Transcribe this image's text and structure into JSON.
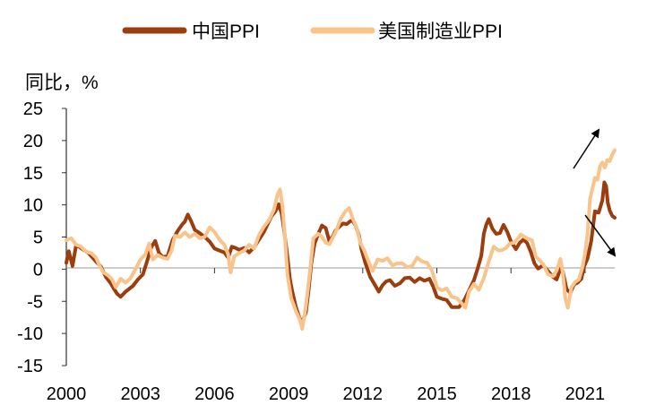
{
  "chart_data": {
    "type": "line",
    "ylabel": "同比，%",
    "ylim": [
      -15,
      25
    ],
    "yticks": [
      "25",
      "20",
      "15",
      "10",
      "5",
      "0",
      "-5",
      "-10",
      "-15"
    ],
    "xlim": [
      2000,
      2022.2
    ],
    "xticks": [
      "2000",
      "2003",
      "2006",
      "2009",
      "2012",
      "2015",
      "2018",
      "2021"
    ],
    "legend_position": "top",
    "grid": false,
    "annotations": [
      "arrow-up-right",
      "arrow-down-right"
    ],
    "series": [
      {
        "name": "中国PPI",
        "color": "#9B3D0C",
        "points": [
          [
            2000.0,
            1.0
          ],
          [
            2000.1,
            2.8
          ],
          [
            2000.25,
            0.5
          ],
          [
            2000.4,
            3.8
          ],
          [
            2000.7,
            3.0
          ],
          [
            2000.9,
            2.5
          ],
          [
            2001.2,
            1.2
          ],
          [
            2001.4,
            0.4
          ],
          [
            2001.6,
            -1.2
          ],
          [
            2001.8,
            -2.2
          ],
          [
            2001.95,
            -3.2
          ],
          [
            2002.05,
            -3.8
          ],
          [
            2002.2,
            -4.3
          ],
          [
            2002.4,
            -3.5
          ],
          [
            2002.7,
            -2.6
          ],
          [
            2002.9,
            -1.6
          ],
          [
            2003.1,
            -0.8
          ],
          [
            2003.25,
            1.0
          ],
          [
            2003.45,
            3.5
          ],
          [
            2003.6,
            4.4
          ],
          [
            2003.75,
            2.5
          ],
          [
            2003.9,
            1.9
          ],
          [
            2004.1,
            2.0
          ],
          [
            2004.3,
            4.5
          ],
          [
            2004.5,
            5.9
          ],
          [
            2004.7,
            7.0
          ],
          [
            2004.8,
            7.4
          ],
          [
            2004.92,
            8.5
          ],
          [
            2005.05,
            7.5
          ],
          [
            2005.2,
            6.1
          ],
          [
            2005.4,
            5.6
          ],
          [
            2005.6,
            5.0
          ],
          [
            2005.8,
            4.3
          ],
          [
            2006.0,
            3.2
          ],
          [
            2006.2,
            2.9
          ],
          [
            2006.4,
            2.6
          ],
          [
            2006.55,
            1.8
          ],
          [
            2006.7,
            3.5
          ],
          [
            2006.85,
            3.3
          ],
          [
            2007.0,
            3.0
          ],
          [
            2007.2,
            3.3
          ],
          [
            2007.4,
            2.6
          ],
          [
            2007.6,
            3.4
          ],
          [
            2007.8,
            4.6
          ],
          [
            2008.0,
            5.8
          ],
          [
            2008.15,
            7.0
          ],
          [
            2008.3,
            8.2
          ],
          [
            2008.45,
            8.9
          ],
          [
            2008.6,
            10.1
          ],
          [
            2008.72,
            8.6
          ],
          [
            2008.82,
            6.0
          ],
          [
            2008.95,
            2.0
          ],
          [
            2009.05,
            -1.5
          ],
          [
            2009.15,
            -3.5
          ],
          [
            2009.3,
            -6.0
          ],
          [
            2009.45,
            -7.7
          ],
          [
            2009.55,
            -8.2
          ],
          [
            2009.7,
            -6.7
          ],
          [
            2009.8,
            -3.5
          ],
          [
            2009.92,
            1.0
          ],
          [
            2010.05,
            4.0
          ],
          [
            2010.2,
            5.5
          ],
          [
            2010.35,
            6.8
          ],
          [
            2010.5,
            6.4
          ],
          [
            2010.65,
            4.3
          ],
          [
            2010.8,
            5.2
          ],
          [
            2010.9,
            6.0
          ],
          [
            2011.05,
            6.6
          ],
          [
            2011.2,
            7.1
          ],
          [
            2011.35,
            7.0
          ],
          [
            2011.5,
            7.5
          ],
          [
            2011.6,
            7.5
          ],
          [
            2011.72,
            6.7
          ],
          [
            2011.85,
            5.2
          ],
          [
            2011.95,
            3.1
          ],
          [
            2012.1,
            1.0
          ],
          [
            2012.3,
            -1.2
          ],
          [
            2012.5,
            -2.5
          ],
          [
            2012.65,
            -3.5
          ],
          [
            2012.8,
            -2.5
          ],
          [
            2012.95,
            -1.9
          ],
          [
            2013.1,
            -1.7
          ],
          [
            2013.3,
            -2.6
          ],
          [
            2013.5,
            -2.2
          ],
          [
            2013.7,
            -1.4
          ],
          [
            2013.9,
            -1.3
          ],
          [
            2014.1,
            -2.0
          ],
          [
            2014.3,
            -1.4
          ],
          [
            2014.5,
            -1.8
          ],
          [
            2014.7,
            -1.5
          ],
          [
            2014.85,
            -2.7
          ],
          [
            2015.0,
            -4.3
          ],
          [
            2015.2,
            -4.6
          ],
          [
            2015.4,
            -4.8
          ],
          [
            2015.6,
            -5.9
          ],
          [
            2015.75,
            -5.9
          ],
          [
            2015.9,
            -5.9
          ],
          [
            2016.1,
            -4.9
          ],
          [
            2016.3,
            -3.3
          ],
          [
            2016.5,
            -1.7
          ],
          [
            2016.65,
            0.1
          ],
          [
            2016.8,
            2.1
          ],
          [
            2016.9,
            5.5
          ],
          [
            2017.0,
            6.9
          ],
          [
            2017.1,
            7.8
          ],
          [
            2017.25,
            6.3
          ],
          [
            2017.4,
            5.5
          ],
          [
            2017.55,
            5.6
          ],
          [
            2017.7,
            6.9
          ],
          [
            2017.85,
            5.8
          ],
          [
            2018.0,
            4.3
          ],
          [
            2018.2,
            3.1
          ],
          [
            2018.35,
            4.1
          ],
          [
            2018.5,
            4.6
          ],
          [
            2018.65,
            4.1
          ],
          [
            2018.8,
            2.7
          ],
          [
            2018.95,
            0.9
          ],
          [
            2019.1,
            0.1
          ],
          [
            2019.3,
            0.6
          ],
          [
            2019.5,
            -0.3
          ],
          [
            2019.7,
            -1.2
          ],
          [
            2019.85,
            -1.6
          ],
          [
            2020.0,
            0.1
          ],
          [
            2020.1,
            -0.4
          ],
          [
            2020.25,
            -3.1
          ],
          [
            2020.4,
            -3.7
          ],
          [
            2020.55,
            -2.4
          ],
          [
            2020.7,
            -2.1
          ],
          [
            2020.85,
            -1.5
          ],
          [
            2020.95,
            0.3
          ],
          [
            2021.1,
            1.7
          ],
          [
            2021.25,
            4.4
          ],
          [
            2021.4,
            9.0
          ],
          [
            2021.55,
            8.8
          ],
          [
            2021.7,
            10.7
          ],
          [
            2021.78,
            13.5
          ],
          [
            2021.85,
            12.9
          ],
          [
            2021.92,
            10.3
          ],
          [
            2022.0,
            9.1
          ],
          [
            2022.1,
            8.3
          ],
          [
            2022.2,
            8.0
          ]
        ]
      },
      {
        "name": "美国制造业PPI",
        "color": "#F9C48B",
        "points": [
          [
            2000.0,
            4.5
          ],
          [
            2000.2,
            4.8
          ],
          [
            2000.4,
            3.8
          ],
          [
            2000.6,
            3.5
          ],
          [
            2000.8,
            2.7
          ],
          [
            2001.0,
            2.5
          ],
          [
            2001.2,
            1.8
          ],
          [
            2001.35,
            0.5
          ],
          [
            2001.5,
            -0.5
          ],
          [
            2001.7,
            -1.0
          ],
          [
            2001.85,
            -1.6
          ],
          [
            2002.0,
            -2.8
          ],
          [
            2002.2,
            -1.5
          ],
          [
            2002.4,
            -2.1
          ],
          [
            2002.6,
            -1.4
          ],
          [
            2002.8,
            0.0
          ],
          [
            2003.0,
            1.5
          ],
          [
            2003.2,
            2.3
          ],
          [
            2003.35,
            4.0
          ],
          [
            2003.5,
            1.5
          ],
          [
            2003.7,
            2.2
          ],
          [
            2003.9,
            1.8
          ],
          [
            2004.1,
            1.6
          ],
          [
            2004.25,
            2.8
          ],
          [
            2004.4,
            5.2
          ],
          [
            2004.6,
            5.0
          ],
          [
            2004.8,
            5.7
          ],
          [
            2005.0,
            5.0
          ],
          [
            2005.2,
            5.5
          ],
          [
            2005.4,
            4.8
          ],
          [
            2005.6,
            5.0
          ],
          [
            2005.8,
            6.5
          ],
          [
            2006.0,
            5.8
          ],
          [
            2006.2,
            4.6
          ],
          [
            2006.4,
            3.8
          ],
          [
            2006.55,
            2.3
          ],
          [
            2006.65,
            -0.5
          ],
          [
            2006.8,
            2.0
          ],
          [
            2007.0,
            2.5
          ],
          [
            2007.2,
            2.9
          ],
          [
            2007.4,
            3.8
          ],
          [
            2007.6,
            3.2
          ],
          [
            2007.8,
            5.3
          ],
          [
            2008.0,
            6.6
          ],
          [
            2008.2,
            7.6
          ],
          [
            2008.4,
            9.2
          ],
          [
            2008.55,
            11.6
          ],
          [
            2008.65,
            12.4
          ],
          [
            2008.75,
            9.8
          ],
          [
            2008.85,
            5.0
          ],
          [
            2008.95,
            -0.8
          ],
          [
            2009.1,
            -4.5
          ],
          [
            2009.3,
            -6.6
          ],
          [
            2009.45,
            -7.8
          ],
          [
            2009.55,
            -9.3
          ],
          [
            2009.7,
            -5.7
          ],
          [
            2009.85,
            -0.8
          ],
          [
            2010.0,
            4.8
          ],
          [
            2010.2,
            5.5
          ],
          [
            2010.35,
            5.0
          ],
          [
            2010.5,
            4.1
          ],
          [
            2010.65,
            3.9
          ],
          [
            2010.8,
            5.0
          ],
          [
            2010.95,
            6.2
          ],
          [
            2011.1,
            7.8
          ],
          [
            2011.3,
            9.0
          ],
          [
            2011.45,
            9.5
          ],
          [
            2011.6,
            7.8
          ],
          [
            2011.75,
            6.5
          ],
          [
            2011.9,
            4.1
          ],
          [
            2012.05,
            3.0
          ],
          [
            2012.2,
            1.5
          ],
          [
            2012.4,
            -0.3
          ],
          [
            2012.6,
            1.5
          ],
          [
            2012.8,
            1.3
          ],
          [
            2013.0,
            1.7
          ],
          [
            2013.2,
            0.6
          ],
          [
            2013.4,
            0.9
          ],
          [
            2013.6,
            0.9
          ],
          [
            2013.8,
            0.3
          ],
          [
            2014.0,
            0.5
          ],
          [
            2014.2,
            1.8
          ],
          [
            2014.4,
            1.2
          ],
          [
            2014.6,
            1.0
          ],
          [
            2014.8,
            -0.2
          ],
          [
            2015.0,
            -2.8
          ],
          [
            2015.2,
            -3.3
          ],
          [
            2015.4,
            -3.0
          ],
          [
            2015.6,
            -4.3
          ],
          [
            2015.8,
            -4.5
          ],
          [
            2016.0,
            -5.3
          ],
          [
            2016.15,
            -6.0
          ],
          [
            2016.3,
            -3.5
          ],
          [
            2016.5,
            -2.3
          ],
          [
            2016.7,
            -3.2
          ],
          [
            2016.9,
            -1.4
          ],
          [
            2017.1,
            1.2
          ],
          [
            2017.3,
            3.5
          ],
          [
            2017.5,
            2.9
          ],
          [
            2017.65,
            3.0
          ],
          [
            2017.8,
            3.3
          ],
          [
            2017.95,
            4.0
          ],
          [
            2018.1,
            4.1
          ],
          [
            2018.25,
            4.6
          ],
          [
            2018.4,
            5.4
          ],
          [
            2018.55,
            5.0
          ],
          [
            2018.7,
            4.7
          ],
          [
            2018.85,
            4.5
          ],
          [
            2019.0,
            2.0
          ],
          [
            2019.15,
            1.4
          ],
          [
            2019.3,
            0.8
          ],
          [
            2019.5,
            -0.8
          ],
          [
            2019.7,
            -1.1
          ],
          [
            2019.85,
            -0.2
          ],
          [
            2020.0,
            1.6
          ],
          [
            2020.1,
            -0.6
          ],
          [
            2020.2,
            -4.6
          ],
          [
            2020.3,
            -6.0
          ],
          [
            2020.45,
            -2.8
          ],
          [
            2020.6,
            -2.0
          ],
          [
            2020.75,
            -1.6
          ],
          [
            2020.9,
            0.4
          ],
          [
            2021.0,
            2.5
          ],
          [
            2021.1,
            5.5
          ],
          [
            2021.2,
            10.9
          ],
          [
            2021.3,
            12.6
          ],
          [
            2021.4,
            14.2
          ],
          [
            2021.5,
            13.9
          ],
          [
            2021.6,
            16.0
          ],
          [
            2021.7,
            16.6
          ],
          [
            2021.8,
            15.8
          ],
          [
            2021.9,
            17.0
          ],
          [
            2022.0,
            16.8
          ],
          [
            2022.1,
            17.8
          ],
          [
            2022.2,
            18.5
          ]
        ]
      }
    ]
  }
}
